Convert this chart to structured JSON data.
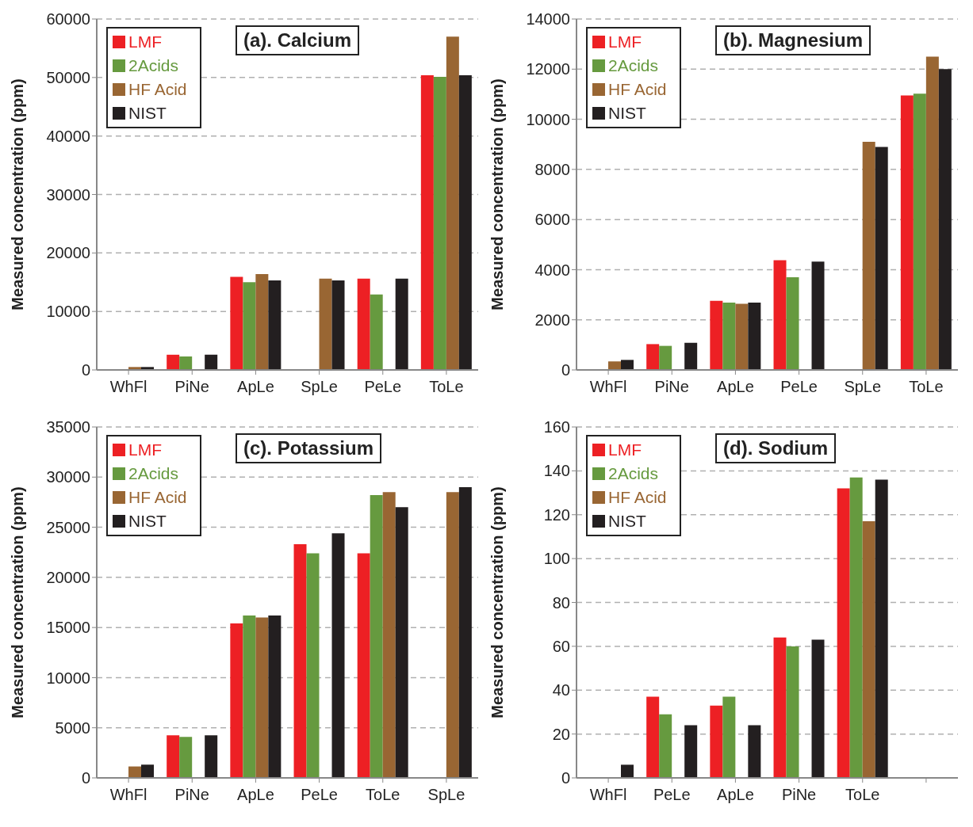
{
  "chart_data": [
    {
      "type": "bar",
      "title": "(a). Calcium",
      "ylabel": "Measured concentration  (ppm)",
      "categories": [
        "WhFl",
        "PiNe",
        "ApLe",
        "SpLe",
        "PeLe",
        "ToLe"
      ],
      "series": [
        {
          "name": "LMF",
          "color": "#ed2024",
          "values": [
            null,
            2600,
            15900,
            null,
            15600,
            50400
          ]
        },
        {
          "name": "2Acids",
          "color": "#669a3f",
          "values": [
            null,
            2300,
            15000,
            null,
            12900,
            50100
          ]
        },
        {
          "name": "HF Acid",
          "color": "#996633",
          "values": [
            500,
            null,
            16400,
            15600,
            null,
            57000
          ]
        },
        {
          "name": "NIST",
          "color": "#231f20",
          "values": [
            500,
            2600,
            15300,
            15300,
            15600,
            50400
          ]
        }
      ],
      "ylim": [
        0,
        60000
      ],
      "yticks": [
        0,
        10000,
        20000,
        30000,
        40000,
        50000,
        60000
      ],
      "grid": "y",
      "legend": "top left"
    },
    {
      "type": "bar",
      "title": "(b). Magnesium",
      "ylabel": "Measured concentration  (ppm)",
      "categories": [
        "WhFl",
        "PiNe",
        "ApLe",
        "PeLe",
        "SpLe",
        "ToLe"
      ],
      "series": [
        {
          "name": "LMF",
          "color": "#ed2024",
          "values": [
            null,
            1030,
            2760,
            4380,
            null,
            10950
          ]
        },
        {
          "name": "2Acids",
          "color": "#669a3f",
          "values": [
            null,
            960,
            2690,
            3700,
            null,
            11020
          ]
        },
        {
          "name": "HF Acid",
          "color": "#996633",
          "values": [
            340,
            null,
            2640,
            null,
            9100,
            12500
          ]
        },
        {
          "name": "NIST",
          "color": "#231f20",
          "values": [
            400,
            1080,
            2690,
            4320,
            8900,
            12000
          ]
        }
      ],
      "ylim": [
        0,
        14000
      ],
      "yticks": [
        0,
        2000,
        4000,
        6000,
        8000,
        10000,
        12000,
        14000
      ],
      "grid": "y",
      "legend": "top left"
    },
    {
      "type": "bar",
      "title": "(c). Potassium",
      "ylabel": "Measured concentration  (ppm)",
      "categories": [
        "WhFl",
        "PiNe",
        "ApLe",
        "PeLe",
        "ToLe",
        "SpLe"
      ],
      "series": [
        {
          "name": "LMF",
          "color": "#ed2024",
          "values": [
            null,
            4240,
            15400,
            23300,
            22400,
            null
          ]
        },
        {
          "name": "2Acids",
          "color": "#669a3f",
          "values": [
            null,
            4090,
            16200,
            22400,
            28200,
            null
          ]
        },
        {
          "name": "HF Acid",
          "color": "#996633",
          "values": [
            1140,
            null,
            16000,
            null,
            28500,
            28500
          ]
        },
        {
          "name": "NIST",
          "color": "#231f20",
          "values": [
            1320,
            4240,
            16200,
            24400,
            27000,
            29000
          ]
        }
      ],
      "ylim": [
        0,
        35000
      ],
      "yticks": [
        0,
        5000,
        10000,
        15000,
        20000,
        25000,
        30000,
        35000
      ],
      "grid": "y",
      "legend": "top left"
    },
    {
      "type": "bar",
      "title": "(d). Sodium",
      "ylabel": "Measured concentration  (ppm)",
      "categories": [
        "WhFl",
        "PeLe",
        "ApLe",
        "PiNe",
        "ToLe",
        null
      ],
      "series": [
        {
          "name": "LMF",
          "color": "#ed2024",
          "values": [
            null,
            37,
            33,
            64,
            132,
            null
          ]
        },
        {
          "name": "2Acids",
          "color": "#669a3f",
          "values": [
            null,
            29,
            37,
            60,
            137,
            null
          ]
        },
        {
          "name": "HF Acid",
          "color": "#996633",
          "values": [
            null,
            null,
            null,
            null,
            117,
            null
          ]
        },
        {
          "name": "NIST",
          "color": "#231f20",
          "values": [
            6,
            24,
            24,
            63,
            136,
            null
          ]
        }
      ],
      "ylim": [
        0,
        160
      ],
      "yticks": [
        0,
        20,
        40,
        60,
        80,
        100,
        120,
        140,
        160
      ],
      "grid": "y",
      "legend": "top left"
    }
  ]
}
